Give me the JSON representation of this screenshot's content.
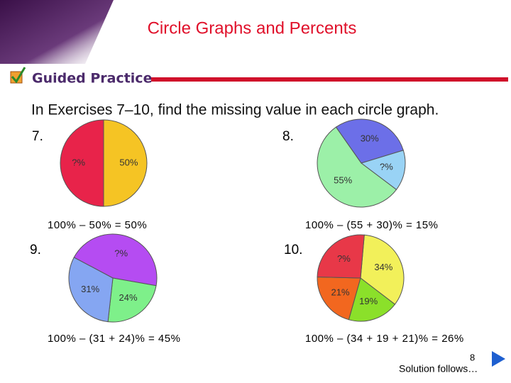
{
  "header": {
    "title": "Circle Graphs and Percents",
    "section": "Guided Practice"
  },
  "instructions": "In Exercises 7–10, find the missing value in each circle graph.",
  "exercises": [
    {
      "number": "7.",
      "values": [
        50,
        50
      ],
      "value_labels": [
        "?%",
        "50%"
      ],
      "colors": [
        "#e8234a",
        "#f5c424"
      ],
      "solution": "100% – 50% = 50%"
    },
    {
      "number": "8.",
      "values": [
        30,
        15,
        55
      ],
      "value_labels": [
        "30%",
        "?%",
        "55%"
      ],
      "colors": [
        "#6c6fe8",
        "#99d3f5",
        "#9cf0a8"
      ],
      "solution": "100% – (55 + 30)% = 15%"
    },
    {
      "number": "9.",
      "values": [
        45,
        24,
        31
      ],
      "value_labels": [
        "?%",
        "24%",
        "31%"
      ],
      "colors": [
        "#b54cf2",
        "#7ef08a",
        "#85a6f2"
      ],
      "solution": "100% – (31 + 24)% = 45%"
    },
    {
      "number": "10.",
      "values": [
        34,
        19,
        21,
        26
      ],
      "value_labels": [
        "34%",
        "19%",
        "21%",
        "?%"
      ],
      "colors": [
        "#f2f05a",
        "#8be02a",
        "#f2671f",
        "#e83848"
      ],
      "solution": "100% – (34 + 19 + 21)% = 26%"
    }
  ],
  "footer": {
    "page": "8",
    "note": "Solution follows…"
  }
}
